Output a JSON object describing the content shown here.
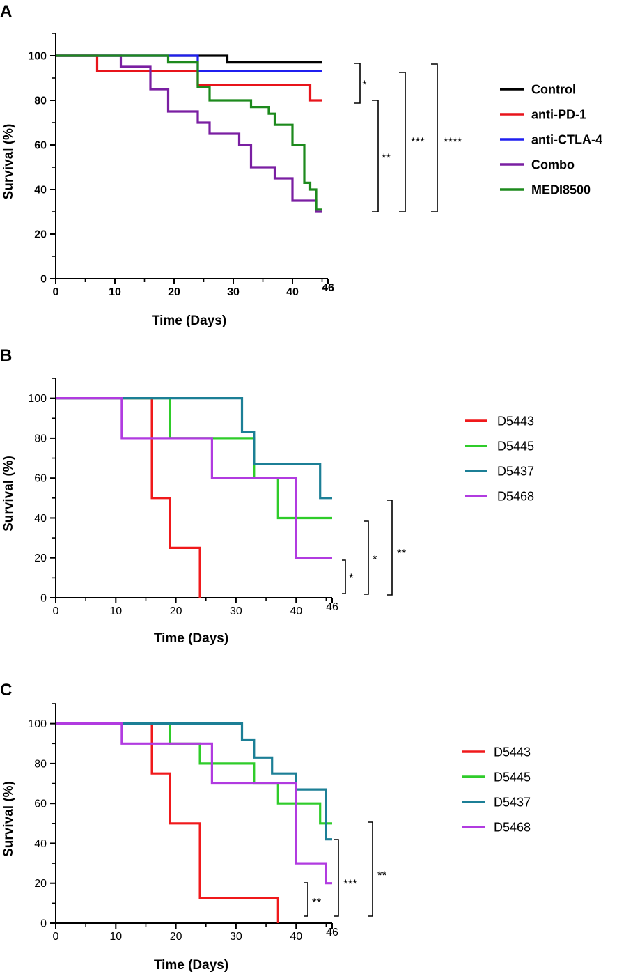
{
  "chart_data": [
    {
      "type": "line",
      "subtype": "kaplan-meier",
      "panel": "A",
      "xlabel": "Time (Days)",
      "ylabel": "Survival (%)",
      "xlim": [
        0,
        46
      ],
      "ylim": [
        0,
        110
      ],
      "xticks": [
        "0",
        "10",
        "20",
        "30",
        "40",
        "46"
      ],
      "yticks": [
        "0",
        "20",
        "40",
        "60",
        "80",
        "100"
      ],
      "legend_position": "right",
      "series": [
        {
          "name": "Control",
          "color": "#000000",
          "x": [
            0,
            29,
            29,
            45
          ],
          "y": [
            100,
            100,
            97,
            97
          ]
        },
        {
          "name": "anti-PD-1",
          "color": "#e8141b",
          "x": [
            0,
            7,
            7,
            24,
            24,
            43,
            43,
            45
          ],
          "y": [
            100,
            100,
            93,
            93,
            87,
            87,
            80,
            80
          ]
        },
        {
          "name": "anti-CTLA-4",
          "color": "#1f1ff0",
          "x": [
            0,
            24,
            24,
            45
          ],
          "y": [
            100,
            100,
            93,
            93
          ]
        },
        {
          "name": "Combo",
          "color": "#7a1fa2",
          "x": [
            0,
            11,
            11,
            16,
            16,
            19,
            19,
            24,
            24,
            26,
            26,
            31,
            31,
            33,
            33,
            37,
            37,
            40,
            40,
            44,
            44,
            45
          ],
          "y": [
            100,
            100,
            95,
            95,
            85,
            85,
            75,
            75,
            70,
            70,
            65,
            65,
            60,
            60,
            50,
            50,
            45,
            45,
            35,
            35,
            30,
            30
          ]
        },
        {
          "name": "MEDI8500",
          "color": "#1d8a1d",
          "x": [
            0,
            19,
            19,
            24,
            24,
            26,
            26,
            33,
            33,
            35,
            35,
            36,
            36,
            37,
            37,
            40,
            40,
            42,
            42,
            43,
            43,
            44,
            44,
            45
          ],
          "y": [
            100,
            100,
            97,
            97,
            86,
            86,
            80,
            80,
            77,
            77,
            77,
            77,
            74,
            74,
            69,
            69,
            60,
            60,
            43,
            43,
            40,
            40,
            31,
            31
          ]
        }
      ],
      "significance": [
        "*",
        "**",
        "***",
        "****"
      ]
    },
    {
      "type": "line",
      "subtype": "kaplan-meier",
      "panel": "B",
      "xlabel": "Time (Days)",
      "ylabel": "Survival (%)",
      "xlim": [
        0,
        46
      ],
      "ylim": [
        0,
        110
      ],
      "xticks": [
        "0",
        "10",
        "20",
        "30",
        "40",
        "46"
      ],
      "yticks": [
        "0",
        "20",
        "40",
        "60",
        "80",
        "100"
      ],
      "legend_position": "right",
      "series": [
        {
          "name": "D5443",
          "color": "#f0191b",
          "x": [
            0,
            16,
            16,
            19,
            19,
            24,
            24
          ],
          "y": [
            100,
            100,
            50,
            50,
            25,
            25,
            0
          ]
        },
        {
          "name": "D5445",
          "color": "#2fcc2a",
          "x": [
            0,
            19,
            19,
            33,
            33,
            37,
            37,
            46
          ],
          "y": [
            100,
            100,
            80,
            80,
            60,
            60,
            40,
            40
          ]
        },
        {
          "name": "D5437",
          "color": "#1c7f96",
          "x": [
            0,
            31,
            31,
            33,
            33,
            44,
            44,
            46
          ],
          "y": [
            100,
            100,
            83,
            83,
            67,
            67,
            50,
            50
          ]
        },
        {
          "name": "D5468",
          "color": "#b13be0",
          "x": [
            0,
            11,
            11,
            26,
            26,
            40,
            40,
            46
          ],
          "y": [
            100,
            100,
            80,
            80,
            60,
            60,
            20,
            20
          ]
        }
      ],
      "significance": [
        "*",
        "*",
        "**"
      ]
    },
    {
      "type": "line",
      "subtype": "kaplan-meier",
      "panel": "C",
      "xlabel": "Time (Days)",
      "ylabel": "Survival (%)",
      "xlim": [
        0,
        46
      ],
      "ylim": [
        0,
        110
      ],
      "xticks": [
        "0",
        "10",
        "20",
        "30",
        "40",
        "46"
      ],
      "yticks": [
        "0",
        "20",
        "40",
        "60",
        "80",
        "100"
      ],
      "legend_position": "right",
      "series": [
        {
          "name": "D5443",
          "color": "#f0191b",
          "x": [
            0,
            16,
            16,
            19,
            19,
            24,
            24,
            37,
            37
          ],
          "y": [
            100,
            100,
            75,
            75,
            50,
            50,
            12.5,
            12.5,
            0
          ]
        },
        {
          "name": "D5445",
          "color": "#2fcc2a",
          "x": [
            0,
            19,
            19,
            24,
            24,
            33,
            33,
            37,
            37,
            44,
            44,
            46
          ],
          "y": [
            100,
            100,
            90,
            90,
            80,
            80,
            70,
            70,
            60,
            60,
            50,
            50
          ]
        },
        {
          "name": "D5437",
          "color": "#1c7f96",
          "x": [
            0,
            31,
            31,
            33,
            33,
            36,
            36,
            40,
            40,
            45,
            45,
            46
          ],
          "y": [
            100,
            100,
            92,
            92,
            83,
            83,
            75,
            75,
            67,
            67,
            42,
            42
          ]
        },
        {
          "name": "D5468",
          "color": "#b13be0",
          "x": [
            0,
            11,
            11,
            26,
            26,
            40,
            40,
            45,
            45,
            46
          ],
          "y": [
            100,
            100,
            90,
            90,
            70,
            70,
            30,
            30,
            20,
            20
          ]
        }
      ],
      "significance": [
        "**",
        "***",
        "**"
      ]
    }
  ]
}
